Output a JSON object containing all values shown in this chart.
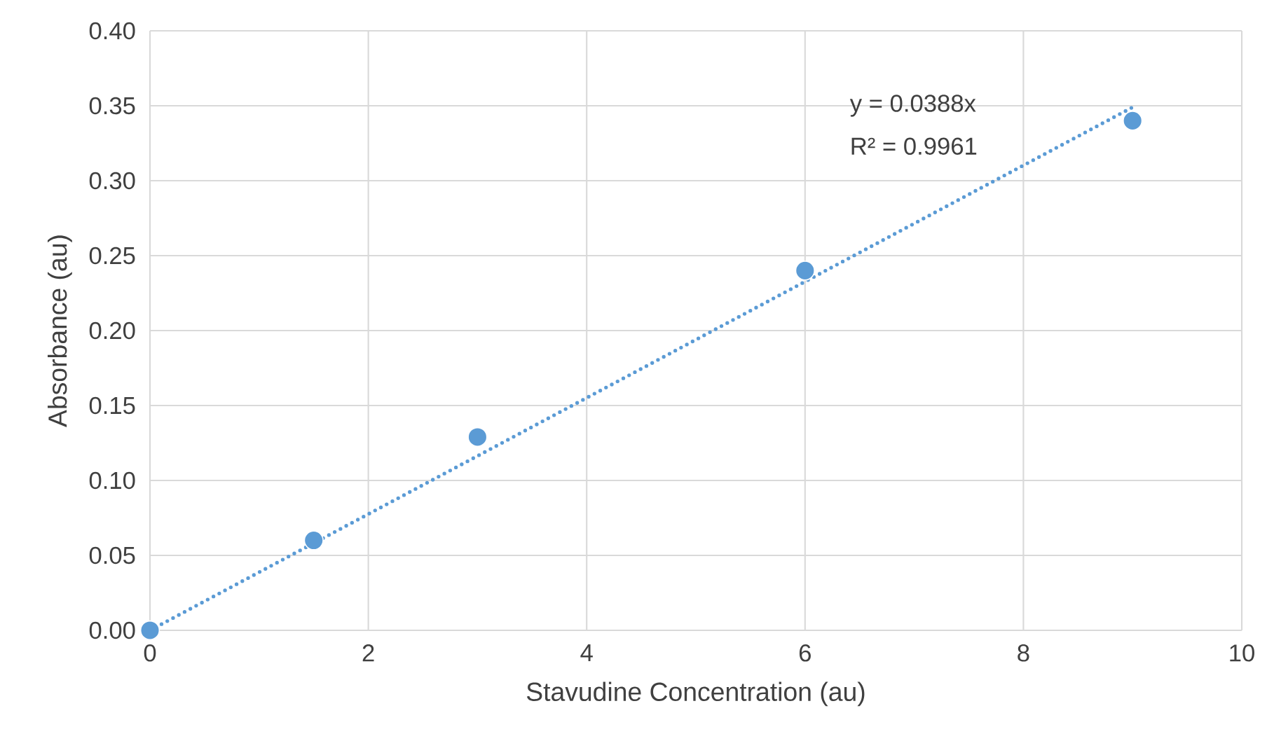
{
  "chart_data": {
    "type": "scatter",
    "xlabel": "Stavudine Concentration (au)",
    "ylabel": "Absorbance (au)",
    "xlim": [
      0,
      10
    ],
    "ylim": [
      0,
      0.4
    ],
    "xticks": [
      0,
      2,
      4,
      6,
      8,
      10
    ],
    "yticks": [
      {
        "value": 0,
        "label": "0.00"
      },
      {
        "value": 0.05,
        "label": "0.05"
      },
      {
        "value": 0.1,
        "label": "0.10"
      },
      {
        "value": 0.15,
        "label": "0.15"
      },
      {
        "value": 0.2,
        "label": "0.20"
      },
      {
        "value": 0.25,
        "label": "0.25"
      },
      {
        "value": 0.3,
        "label": "0.30"
      },
      {
        "value": 0.35,
        "label": "0.35"
      },
      {
        "value": 0.4,
        "label": "0.40"
      }
    ],
    "grid": true,
    "series": [
      {
        "type": "scatter",
        "color": "#5b9bd5",
        "marker": "circle",
        "x": [
          0,
          1.5,
          3,
          6,
          9
        ],
        "values": [
          0,
          0.06,
          0.129,
          0.24,
          0.34
        ]
      },
      {
        "type": "line",
        "color": "#5b9bd5",
        "line_style": "dotted",
        "marker": "none",
        "x": [
          0,
          9
        ],
        "values": [
          0,
          0.349
        ]
      }
    ],
    "annotations": [
      "y = 0.0388x",
      "R² = 0.9961"
    ]
  }
}
